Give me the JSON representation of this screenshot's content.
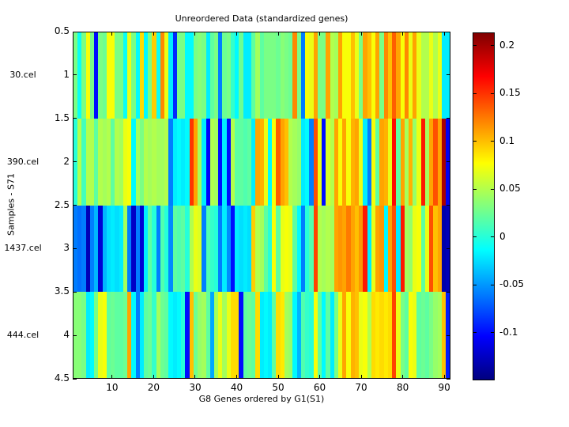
{
  "figure": {
    "background": "#ffffff",
    "axis_color": "#000000"
  },
  "chart_data": {
    "type": "heatmap",
    "title": "Unreordered Data (standardized genes)",
    "xlabel": "G8 Genes ordered by G1(S1)",
    "ylabel": "Samples - S71",
    "colormap": "jet",
    "n_genes": 91,
    "x_ticks": [
      10,
      20,
      30,
      40,
      50,
      60,
      70,
      80,
      90
    ],
    "y_ticks": [
      0.5,
      1,
      1.5,
      2,
      2.5,
      3,
      3.5,
      4,
      4.5
    ],
    "y_range": [
      0.5,
      4.5
    ],
    "row_labels": [
      "30.cel",
      "390.cel",
      "1437.cel",
      "444.cel"
    ],
    "color_axis": {
      "min": -0.15,
      "max": 0.214
    },
    "colorbar_ticks": [
      0.2,
      0.15,
      0.1,
      0.05,
      0,
      -0.05,
      -0.1
    ],
    "colorbar_tick_labels": [
      "0.2",
      "0.15",
      "0.1",
      "0.05",
      "0",
      "-0.05",
      "-0.1"
    ],
    "rows": [
      {
        "label": "30.cel",
        "values": [
          0.03,
          -0.01,
          0.03,
          0.075,
          0.03,
          -0.1,
          0.03,
          0.025,
          0.075,
          0.075,
          0.03,
          0.03,
          -0.01,
          0.07,
          0.03,
          -0.015,
          0.09,
          -0.015,
          0.03,
          0.095,
          -0.01,
          0.12,
          0.07,
          -0.02,
          -0.09,
          0.03,
          0.03,
          -0.015,
          -0.015,
          0.03,
          0.035,
          0.03,
          -0.02,
          0.02,
          0.03,
          -0.06,
          0.025,
          0.03,
          0.005,
          -0.015,
          0.025,
          -0.02,
          -0.02,
          0.02,
          0.045,
          0.02,
          0.03,
          0.03,
          0.03,
          0.025,
          0.035,
          0.03,
          0.025,
          0.12,
          0.03,
          -0.06,
          0.075,
          0.07,
          0.11,
          0.03,
          0.03,
          0.11,
          0.05,
          0.045,
          0.11,
          0.075,
          0.075,
          0.1,
          0.07,
          0.03,
          0.11,
          0.1,
          0.075,
          0.11,
          0.03,
          0.12,
          0.1,
          0.135,
          0.11,
          0.075,
          0.12,
          0.07,
          0.11,
          0.07,
          0.05,
          0.05,
          0.07,
          0.05,
          0.07,
          -0.02,
          -0.02
        ]
      },
      {
        "label": "390.cel",
        "values": [
          0.0,
          0.05,
          0.01,
          0.05,
          0.05,
          0.02,
          0.05,
          0.045,
          0.05,
          0.02,
          0.05,
          0.045,
          0.07,
          0.075,
          -0.015,
          0.045,
          0.03,
          0.05,
          0.045,
          0.05,
          0.045,
          0.045,
          0.05,
          -0.06,
          -0.02,
          -0.015,
          -0.02,
          -0.015,
          0.15,
          0.11,
          0.045,
          -0.02,
          -0.105,
          0.05,
          0.045,
          -0.1,
          -0.02,
          -0.1,
          0.05,
          0.02,
          0.02,
          0.015,
          0.02,
          -0.02,
          0.11,
          0.105,
          0.07,
          -0.015,
          0.075,
          0.135,
          0.11,
          0.1,
          0.05,
          0.045,
          0.04,
          -0.02,
          -0.015,
          -0.06,
          0.14,
          0.07,
          -0.1,
          0.065,
          0.05,
          0.11,
          0.075,
          0.11,
          0.075,
          0.105,
          0.11,
          0.07,
          -0.02,
          -0.06,
          0.075,
          0.02,
          0.11,
          0.105,
          0.07,
          0.165,
          0.02,
          0.11,
          0.045,
          0.105,
          0.04,
          0.07,
          0.16,
          0.045,
          0.11,
          0.14,
          0.11,
          0.2,
          -0.11
        ]
      },
      {
        "label": "1437.cel",
        "values": [
          -0.06,
          -0.065,
          -0.06,
          -0.13,
          -0.06,
          -0.04,
          -0.12,
          -0.04,
          -0.025,
          -0.02,
          -0.025,
          -0.02,
          0.045,
          -0.06,
          -0.125,
          -0.06,
          -0.12,
          -0.02,
          0.02,
          0.0,
          -0.06,
          0.015,
          0.0,
          -0.055,
          0.02,
          0.015,
          0.02,
          0.0,
          0.05,
          0.07,
          0.065,
          -0.06,
          0.015,
          0.005,
          0.0,
          -0.06,
          -0.02,
          -0.055,
          -0.1,
          -0.02,
          -0.025,
          -0.02,
          -0.025,
          0.095,
          0.05,
          0.045,
          0.02,
          0.0,
          0.075,
          0.02,
          0.07,
          0.075,
          0.07,
          0.02,
          -0.015,
          -0.06,
          0.0,
          0.015,
          0.145,
          0.05,
          0.045,
          0.05,
          0.045,
          0.11,
          0.115,
          0.11,
          0.125,
          0.11,
          0.1,
          0.115,
          0.16,
          -0.02,
          0.07,
          0.11,
          0.115,
          -0.015,
          0.11,
          0.14,
          -0.02,
          0.16,
          0.045,
          0.04,
          0.07,
          0.075,
          0.02,
          0.07,
          0.14,
          0.1,
          0.11,
          -0.135,
          -0.13
        ]
      },
      {
        "label": "444.cel",
        "values": [
          0.035,
          0.035,
          0.03,
          -0.02,
          -0.015,
          0.03,
          0.07,
          0.075,
          0.02,
          0.025,
          0.02,
          0.02,
          0.025,
          0.11,
          -0.015,
          -0.06,
          -0.02,
          0.02,
          0.025,
          0.005,
          0.045,
          0.025,
          0.02,
          -0.015,
          -0.02,
          -0.015,
          0.0,
          -0.1,
          0.1,
          0.025,
          0.04,
          0.045,
          0.02,
          -0.045,
          0.045,
          0.07,
          0.045,
          0.07,
          0.09,
          0.09,
          -0.1,
          0.02,
          0.025,
          0.02,
          0.09,
          -0.02,
          -0.015,
          -0.02,
          0.02,
          0.09,
          0.085,
          0.045,
          0.04,
          -0.015,
          -0.04,
          0.015,
          0.005,
          0.0,
          0.075,
          0.02,
          -0.015,
          0.02,
          -0.02,
          0.03,
          0.07,
          0.11,
          0.075,
          0.105,
          0.1,
          0.07,
          0.075,
          0.05,
          0.09,
          0.085,
          0.09,
          0.085,
          0.09,
          0.145,
          0.07,
          0.03,
          0.02,
          0.075,
          0.07,
          0.02,
          0.025,
          0.02,
          0.03,
          0.04,
          0.045,
          0.1,
          -0.095
        ]
      }
    ]
  }
}
